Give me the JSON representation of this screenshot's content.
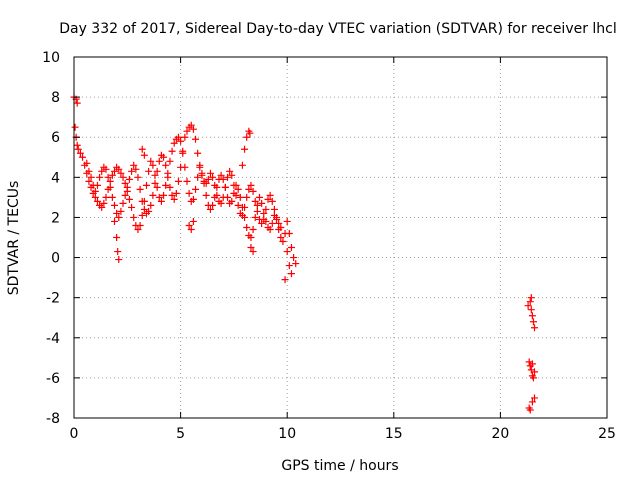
{
  "chart_data": {
    "type": "scatter",
    "title": "Day 332 of 2017, Sidereal Day-to-day VTEC variation (SDTVAR) for receiver lhcl",
    "xlabel": "GPS time / hours",
    "ylabel": "SDTVAR / TECUs",
    "xlim": [
      0,
      25
    ],
    "ylim": [
      -8,
      10
    ],
    "xticks": [
      0,
      5,
      10,
      15,
      20,
      25
    ],
    "yticks": [
      -8,
      -6,
      -4,
      -2,
      0,
      2,
      4,
      6,
      8,
      10
    ],
    "grid": true,
    "marker": "+",
    "color": "#ff0000",
    "series": [
      {
        "name": "SDTVAR",
        "trace": [
          [
            0.0,
            8.0
          ],
          [
            0.1,
            7.9
          ],
          [
            0.15,
            7.7
          ],
          [
            0.05,
            6.5
          ],
          [
            0.1,
            6.0
          ],
          [
            0.15,
            5.6
          ],
          [
            0.2,
            5.4
          ],
          [
            0.3,
            5.2
          ],
          [
            0.4,
            5.0
          ],
          [
            0.5,
            4.6
          ],
          [
            0.6,
            4.2
          ],
          [
            0.7,
            3.8
          ],
          [
            0.8,
            3.5
          ],
          [
            0.9,
            3.2
          ],
          [
            1.0,
            3.0
          ],
          [
            1.1,
            2.8
          ],
          [
            1.2,
            2.6
          ],
          [
            1.3,
            2.5
          ],
          [
            1.4,
            2.7
          ],
          [
            1.5,
            3.0
          ],
          [
            1.6,
            3.4
          ],
          [
            1.7,
            3.8
          ],
          [
            1.8,
            4.1
          ],
          [
            1.9,
            4.3
          ],
          [
            2.0,
            4.5
          ],
          [
            2.1,
            4.4
          ],
          [
            2.2,
            4.2
          ],
          [
            2.3,
            4.0
          ],
          [
            2.4,
            3.7
          ],
          [
            2.5,
            3.3
          ],
          [
            2.6,
            2.9
          ],
          [
            2.7,
            2.5
          ],
          [
            2.8,
            2.0
          ],
          [
            2.9,
            1.6
          ],
          [
            3.0,
            1.4
          ],
          [
            3.1,
            1.6
          ],
          [
            3.2,
            2.1
          ],
          [
            3.3,
            2.8
          ],
          [
            3.4,
            3.6
          ],
          [
            3.5,
            4.3
          ],
          [
            3.6,
            4.8
          ],
          [
            3.7,
            4.6
          ],
          [
            3.8,
            4.1
          ],
          [
            3.9,
            3.5
          ],
          [
            4.0,
            3.0
          ],
          [
            4.1,
            2.8
          ],
          [
            4.2,
            3.1
          ],
          [
            4.3,
            3.6
          ],
          [
            4.4,
            4.2
          ],
          [
            4.5,
            4.8
          ],
          [
            4.6,
            5.3
          ],
          [
            4.7,
            5.7
          ],
          [
            4.8,
            5.9
          ],
          [
            4.9,
            6.0
          ],
          [
            5.0,
            5.8
          ],
          [
            5.1,
            5.2
          ],
          [
            5.2,
            4.5
          ],
          [
            5.3,
            3.8
          ],
          [
            5.4,
            3.2
          ],
          [
            5.5,
            2.8
          ],
          [
            5.6,
            2.9
          ],
          [
            5.7,
            3.4
          ],
          [
            5.8,
            4.0
          ],
          [
            5.9,
            4.5
          ],
          [
            6.0,
            4.2
          ],
          [
            6.1,
            3.7
          ],
          [
            6.2,
            3.1
          ],
          [
            6.3,
            2.6
          ],
          [
            6.4,
            2.4
          ],
          [
            6.5,
            2.6
          ],
          [
            6.6,
            3.0
          ],
          [
            6.7,
            3.5
          ],
          [
            6.8,
            3.9
          ],
          [
            6.9,
            4.1
          ],
          [
            7.0,
            3.9
          ],
          [
            7.1,
            3.5
          ],
          [
            7.2,
            3.0
          ],
          [
            7.3,
            2.7
          ],
          [
            7.4,
            2.8
          ],
          [
            7.5,
            3.2
          ],
          [
            7.6,
            3.6
          ],
          [
            7.7,
            3.4
          ],
          [
            7.8,
            3.0
          ],
          [
            7.9,
            2.5
          ],
          [
            8.0,
            2.0
          ],
          [
            8.1,
            1.5
          ],
          [
            8.2,
            1.1
          ],
          [
            8.3,
            1.0
          ],
          [
            8.4,
            1.4
          ],
          [
            8.5,
            2.0
          ],
          [
            8.6,
            2.6
          ],
          [
            8.7,
            3.0
          ],
          [
            8.8,
            2.7
          ],
          [
            8.9,
            2.2
          ],
          [
            9.0,
            1.8
          ],
          [
            9.1,
            1.5
          ],
          [
            9.2,
            1.4
          ],
          [
            9.3,
            1.7
          ],
          [
            9.4,
            2.1
          ],
          [
            9.5,
            1.9
          ],
          [
            9.6,
            1.4
          ],
          [
            9.7,
            1.0
          ],
          [
            9.8,
            0.8
          ],
          [
            9.9,
            1.2
          ],
          [
            10.0,
            1.8
          ],
          [
            10.1,
            1.2
          ],
          [
            10.2,
            0.5
          ],
          [
            10.3,
            0.0
          ],
          [
            10.4,
            -0.3
          ],
          [
            0.6,
            4.7
          ],
          [
            0.7,
            4.3
          ],
          [
            0.8,
            4.0
          ],
          [
            0.9,
            3.6
          ],
          [
            1.0,
            3.3
          ],
          [
            1.1,
            3.6
          ],
          [
            1.2,
            4.0
          ],
          [
            1.3,
            4.3
          ],
          [
            1.4,
            4.5
          ],
          [
            1.5,
            4.4
          ],
          [
            1.6,
            4.0
          ],
          [
            1.7,
            3.5
          ],
          [
            1.8,
            3.0
          ],
          [
            1.9,
            2.6
          ],
          [
            2.0,
            2.2
          ],
          [
            2.1,
            2.0
          ],
          [
            2.2,
            2.3
          ],
          [
            2.3,
            2.7
          ],
          [
            2.4,
            3.1
          ],
          [
            2.5,
            3.5
          ],
          [
            2.6,
            3.9
          ],
          [
            2.7,
            4.3
          ],
          [
            2.8,
            4.6
          ],
          [
            2.9,
            4.4
          ],
          [
            3.0,
            4.0
          ],
          [
            3.1,
            3.4
          ],
          [
            3.2,
            2.8
          ],
          [
            3.3,
            2.4
          ],
          [
            3.4,
            2.2
          ],
          [
            3.5,
            2.3
          ],
          [
            3.6,
            2.6
          ],
          [
            3.7,
            3.1
          ],
          [
            3.8,
            3.7
          ],
          [
            3.9,
            4.3
          ],
          [
            4.0,
            4.8
          ],
          [
            4.1,
            5.1
          ],
          [
            4.2,
            5.0
          ],
          [
            4.3,
            4.6
          ],
          [
            4.4,
            4.0
          ],
          [
            4.5,
            3.5
          ],
          [
            4.6,
            3.1
          ],
          [
            4.7,
            2.9
          ],
          [
            4.8,
            3.2
          ],
          [
            4.9,
            3.8
          ],
          [
            5.0,
            4.5
          ],
          [
            5.1,
            5.3
          ],
          [
            5.2,
            6.0
          ],
          [
            5.3,
            6.3
          ],
          [
            5.4,
            6.5
          ],
          [
            5.5,
            6.6
          ],
          [
            5.6,
            6.4
          ],
          [
            5.7,
            5.9
          ],
          [
            5.8,
            5.2
          ],
          [
            5.9,
            4.6
          ],
          [
            6.0,
            4.1
          ],
          [
            6.1,
            3.8
          ],
          [
            6.2,
            3.7
          ],
          [
            6.3,
            3.9
          ],
          [
            6.4,
            4.2
          ],
          [
            6.5,
            4.0
          ],
          [
            6.6,
            3.6
          ],
          [
            6.7,
            3.1
          ],
          [
            6.8,
            2.8
          ],
          [
            6.9,
            2.7
          ],
          [
            7.0,
            3.0
          ],
          [
            7.1,
            3.5
          ],
          [
            7.2,
            4.0
          ],
          [
            7.3,
            4.3
          ],
          [
            7.4,
            4.1
          ],
          [
            7.5,
            3.6
          ],
          [
            7.6,
            3.1
          ],
          [
            7.7,
            2.6
          ],
          [
            7.8,
            2.2
          ],
          [
            7.9,
            2.1
          ],
          [
            8.0,
            2.5
          ],
          [
            8.1,
            3.0
          ],
          [
            8.2,
            3.4
          ],
          [
            8.3,
            3.6
          ],
          [
            8.4,
            3.3
          ],
          [
            8.5,
            2.8
          ],
          [
            8.6,
            2.3
          ],
          [
            8.7,
            1.9
          ],
          [
            8.8,
            1.7
          ],
          [
            8.9,
            1.9
          ],
          [
            9.0,
            2.4
          ],
          [
            9.1,
            2.9
          ],
          [
            9.2,
            3.1
          ],
          [
            9.3,
            2.8
          ],
          [
            9.4,
            2.4
          ],
          [
            9.5,
            2.0
          ],
          [
            9.6,
            1.7
          ],
          [
            9.7,
            1.5
          ],
          [
            1.9,
            1.8
          ],
          [
            2.0,
            1.0
          ],
          [
            2.05,
            0.3
          ],
          [
            2.1,
            -0.1
          ],
          [
            3.2,
            5.4
          ],
          [
            3.3,
            5.1
          ],
          [
            5.4,
            1.6
          ],
          [
            5.5,
            1.4
          ],
          [
            5.6,
            1.8
          ],
          [
            7.9,
            4.6
          ],
          [
            8.0,
            5.4
          ],
          [
            8.1,
            6.0
          ],
          [
            8.2,
            6.3
          ],
          [
            8.25,
            6.2
          ],
          [
            8.3,
            0.5
          ],
          [
            8.4,
            0.3
          ],
          [
            10.0,
            0.3
          ],
          [
            10.1,
            -0.4
          ],
          [
            10.2,
            -0.8
          ],
          [
            9.9,
            -1.1
          ],
          [
            21.3,
            -2.4
          ],
          [
            21.4,
            -2.2
          ],
          [
            21.45,
            -2.6
          ],
          [
            21.5,
            -2.9
          ],
          [
            21.55,
            -3.2
          ],
          [
            21.6,
            -3.5
          ],
          [
            21.45,
            -2.0
          ],
          [
            21.35,
            -5.2
          ],
          [
            21.4,
            -5.4
          ],
          [
            21.45,
            -5.6
          ],
          [
            21.5,
            -5.9
          ],
          [
            21.55,
            -6.0
          ],
          [
            21.6,
            -5.7
          ],
          [
            21.5,
            -5.3
          ],
          [
            21.35,
            -7.5
          ],
          [
            21.4,
            -7.6
          ],
          [
            21.5,
            -7.2
          ],
          [
            21.6,
            -7.0
          ]
        ]
      }
    ]
  }
}
